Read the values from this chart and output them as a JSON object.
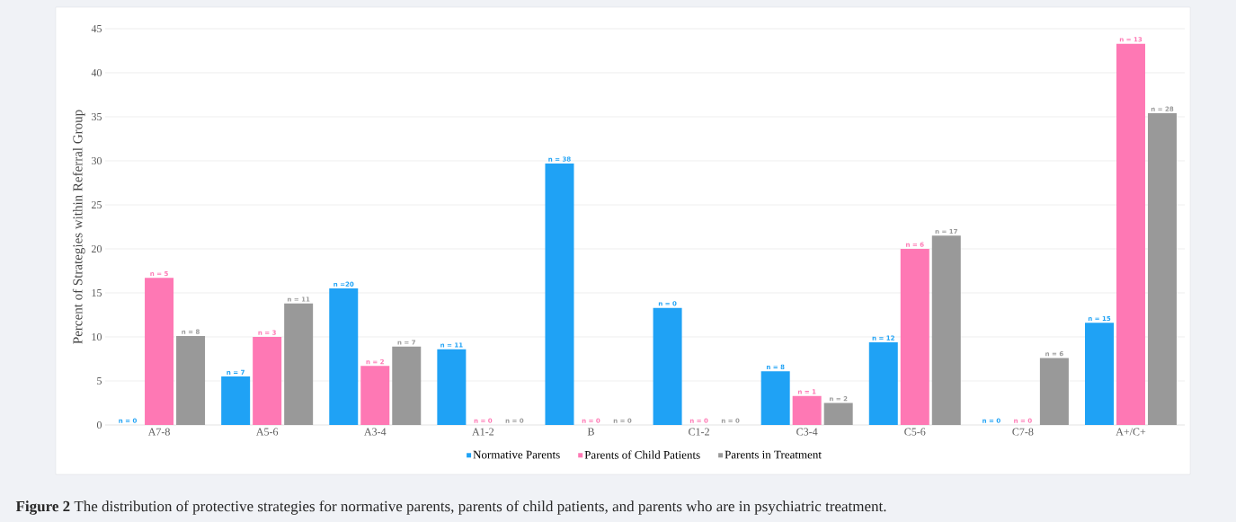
{
  "chart_data": {
    "type": "bar",
    "ylabel": "Percent of Strategies within Referral Group",
    "categories": [
      "A7-8",
      "A5-6",
      "A3-4",
      "A1-2",
      "B",
      "C1-2",
      "C3-4",
      "C5-6",
      "C7-8",
      "A+/C+"
    ],
    "series": [
      {
        "name": "Normative Parents",
        "color": "#1fa2f5",
        "values": [
          0,
          5.5,
          15.5,
          8.6,
          29.7,
          13.3,
          6.1,
          9.4,
          0,
          11.6
        ]
      },
      {
        "name": "Parents of Child Patients",
        "color": "#fe78b4",
        "values": [
          16.7,
          10,
          6.7,
          0,
          0,
          0,
          3.3,
          20,
          0,
          43.3
        ]
      },
      {
        "name": "Parents in Treatment",
        "color": "#999999",
        "values": [
          10.1,
          13.8,
          8.9,
          0,
          0,
          0,
          2.5,
          21.5,
          7.6,
          35.4
        ]
      }
    ],
    "ylim": [
      0,
      45
    ],
    "yticks": [
      0,
      5,
      10,
      15,
      20,
      25,
      30,
      35,
      40,
      45
    ],
    "grid": "y",
    "legend": "bottom",
    "annotations": [
      "**Figure 2** The distribution of protective strategies for normative parents, parents of child patients, and parents who are in psychiatric treatment.",
      "n = 0",
      "n = 5",
      "n = 8",
      "n = 7",
      "n = 3",
      "n = 11",
      "n =20",
      "n = 2",
      "n = 7",
      "n = 11",
      "n = 0",
      "n = 0",
      "n = 38",
      "n = 0",
      "n = 0",
      "n = 0",
      "n = 0",
      "n = 0",
      "n = 8",
      "n = 1",
      "n = 2",
      "n = 12",
      "n = 6",
      "n = 17",
      "n = 0",
      "n = 0",
      "n = 6",
      "n = 15",
      "n = 13",
      "n = 28"
    ]
  }
}
